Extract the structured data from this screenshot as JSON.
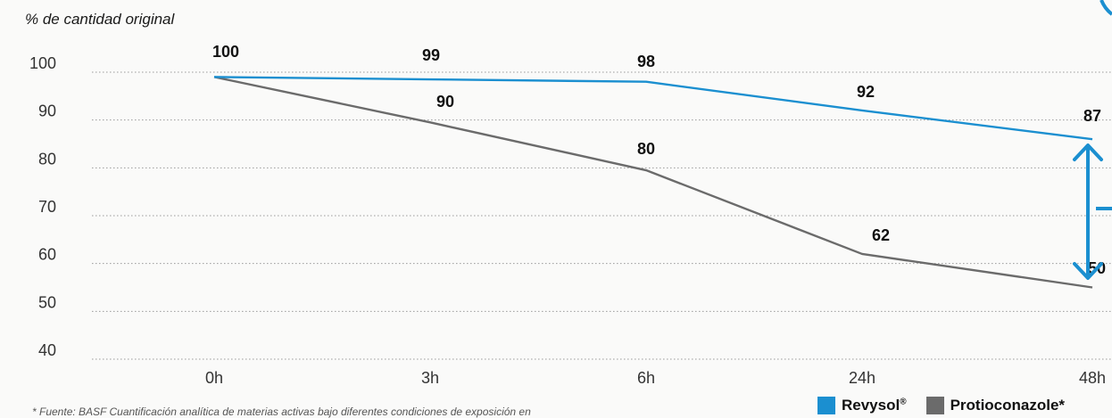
{
  "chart_data": {
    "type": "line",
    "ylabel": "% de cantidad original",
    "categories": [
      "0h",
      "3h",
      "6h",
      "24h",
      "48h"
    ],
    "y_ticks": [
      "100",
      "90",
      "80",
      "70",
      "60",
      "50",
      "40"
    ],
    "ylim": [
      40,
      100
    ],
    "grid": true,
    "legend_position": "bottom-right",
    "series": [
      {
        "name": "Revysol",
        "color": "#1b8fd0",
        "values": [
          100,
          99,
          98,
          92,
          87
        ],
        "display_values": [
          99,
          98.5,
          98,
          92,
          86
        ]
      },
      {
        "name": "Protioconazole*",
        "color": "#6b6b6b",
        "values": [
          100,
          90,
          80,
          62,
          50
        ],
        "display_values": [
          99,
          89.5,
          79.5,
          62,
          55
        ]
      }
    ],
    "annotations": {
      "data_labels": [
        {
          "text": "100"
        },
        {
          "text": "99"
        },
        {
          "text": "90"
        },
        {
          "text": "98"
        },
        {
          "text": "80"
        },
        {
          "text": "92"
        },
        {
          "text": "62"
        },
        {
          "text": "87"
        },
        {
          "text": "50"
        }
      ],
      "bracket_color": "#1b8fd0"
    }
  },
  "legend": {
    "items": [
      {
        "label": "Revysol",
        "sup": "®",
        "color": "#1b8fd0"
      },
      {
        "label": "Protioconazole*",
        "sup": "",
        "color": "#6b6b6b"
      }
    ]
  },
  "footnote": "* Fuente: BASF Cuantificación analítica de materias activas bajo diferentes condiciones de exposición en"
}
